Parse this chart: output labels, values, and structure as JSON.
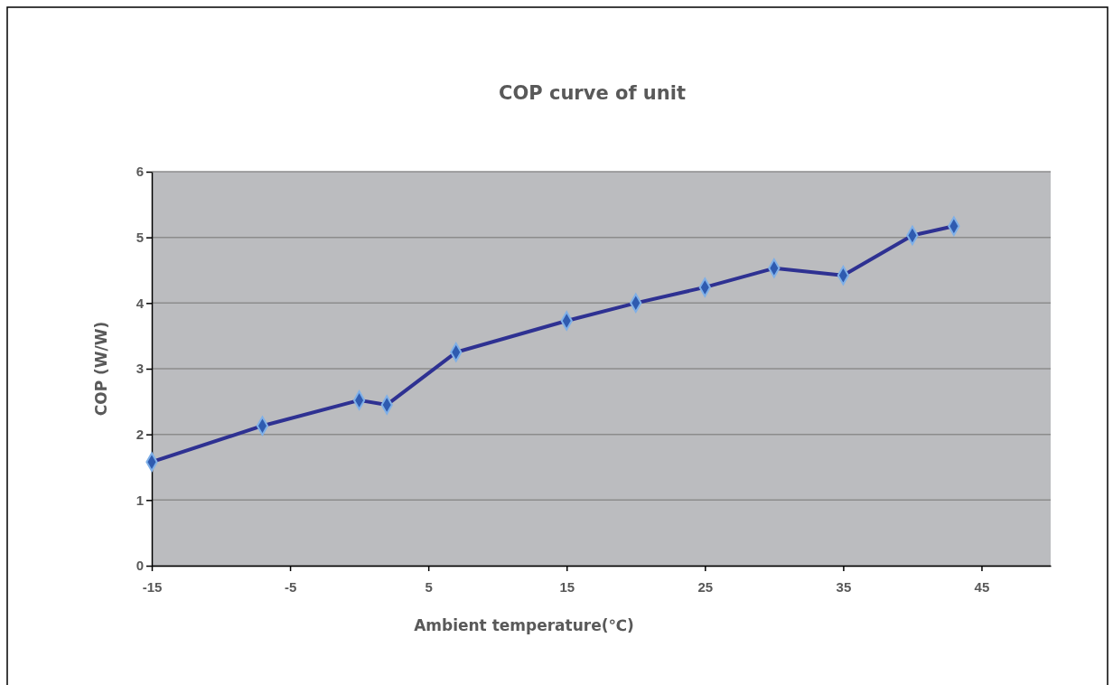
{
  "chart_data": {
    "type": "line",
    "title": "COP curve of unit",
    "xlabel": "Ambient temperature(℃)",
    "ylabel": "COP (W/W)",
    "x": [
      -15,
      -7,
      0,
      2,
      7,
      15,
      20,
      25,
      30,
      35,
      40,
      43
    ],
    "series": [
      {
        "color": "#2e3192",
        "values": [
          1.58,
          2.13,
          2.52,
          2.45,
          3.25,
          3.73,
          4.0,
          4.24,
          4.53,
          4.42,
          5.03,
          5.17
        ]
      }
    ],
    "xlim": [
      -15,
      50
    ],
    "xticks": [
      -15,
      -5,
      5,
      15,
      25,
      35,
      45
    ],
    "ylim": [
      0,
      6
    ],
    "yticks": [
      0,
      1,
      2,
      3,
      4,
      5,
      6
    ],
    "grid": "y",
    "marker": "diamond",
    "line_style": "solid"
  }
}
